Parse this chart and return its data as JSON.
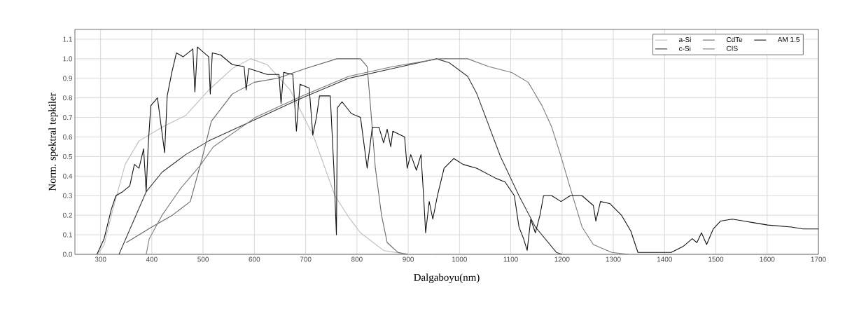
{
  "chart_data": {
    "type": "line",
    "xlabel": "Dalgaboyu(nm)",
    "ylabel": "Norm. spektral tepkiler",
    "xlim": [
      250,
      1700
    ],
    "ylim": [
      0,
      1.15
    ],
    "xticks": [
      300,
      400,
      500,
      600,
      700,
      800,
      900,
      1000,
      1100,
      1200,
      1300,
      1400,
      1500,
      1600,
      1700
    ],
    "yticks": [
      {
        "value": 0,
        "label": "0.0"
      },
      {
        "value": 0.1,
        "label": "0.1"
      },
      {
        "value": 0.2,
        "label": "0.2"
      },
      {
        "value": 0.3,
        "label": "0.3"
      },
      {
        "value": 0.4,
        "label": "0.4"
      },
      {
        "value": 0.5,
        "label": "0.5"
      },
      {
        "value": 0.6,
        "label": "0.6"
      },
      {
        "value": 0.7,
        "label": "0.7"
      },
      {
        "value": 0.8,
        "label": "0.8"
      },
      {
        "value": 0.9,
        "label": "0.9"
      },
      {
        "value": 1.0,
        "label": "1.0"
      },
      {
        "value": 1.1,
        "label": "1.1"
      }
    ],
    "grid": true,
    "legend": "top right",
    "series": [
      {
        "name": "a-Si",
        "color": "#bdbdbd",
        "x": [
          295,
          307,
          325,
          348,
          375,
          420,
          466,
          511,
          557,
          593,
          625,
          670,
          716,
          757,
          784,
          807,
          852,
          898,
          950
        ],
        "values": [
          0,
          0.05,
          0.24,
          0.46,
          0.58,
          0.65,
          0.71,
          0.84,
          0.95,
          1.0,
          0.97,
          0.84,
          0.6,
          0.3,
          0.19,
          0.11,
          0.02,
          0,
          0
        ]
      },
      {
        "name": "c-Si",
        "color": "#333333",
        "x": [
          336,
          389,
          420,
          466,
          511,
          602,
          693,
          784,
          870,
          955,
          980,
          1016,
          1034,
          1080,
          1116,
          1148,
          1189,
          1200
        ],
        "values": [
          0,
          0.32,
          0.42,
          0.51,
          0.58,
          0.69,
          0.8,
          0.9,
          0.95,
          1.0,
          0.98,
          0.91,
          0.82,
          0.5,
          0.3,
          0.14,
          0.01,
          0
        ]
      },
      {
        "name": "CdTe",
        "color": "#666666",
        "x": [
          350,
          400,
          440,
          475,
          498,
          516,
          557,
          600,
          645,
          700,
          761,
          807,
          820,
          827,
          836,
          848,
          859,
          880,
          900
        ],
        "values": [
          0.06,
          0.14,
          0.2,
          0.27,
          0.49,
          0.68,
          0.82,
          0.88,
          0.9,
          0.95,
          1.0,
          1.0,
          0.96,
          0.74,
          0.44,
          0.2,
          0.06,
          0.01,
          0
        ]
      },
      {
        "name": "CIS",
        "color": "#7a7a7a",
        "x": [
          389,
          395,
          420,
          457,
          493,
          520,
          602,
          693,
          784,
          870,
          960,
          1016,
          1057,
          1102,
          1134,
          1161,
          1180,
          1198,
          1216,
          1239,
          1261,
          1297,
          1330
        ],
        "values": [
          0,
          0.08,
          0.2,
          0.34,
          0.45,
          0.55,
          0.7,
          0.81,
          0.91,
          0.96,
          1.0,
          1.0,
          0.96,
          0.93,
          0.88,
          0.76,
          0.65,
          0.5,
          0.34,
          0.14,
          0.05,
          0.01,
          0
        ]
      },
      {
        "name": "AM 1.5",
        "color": "#111111",
        "x": [
          293,
          307,
          321,
          330,
          343,
          357,
          366,
          375,
          384,
          389,
          393,
          398,
          411,
          425,
          430,
          439,
          448,
          461,
          480,
          484,
          489,
          511,
          514,
          518,
          534,
          557,
          580,
          584,
          589,
          625,
          648,
          652,
          657,
          675,
          682,
          689,
          707,
          714,
          721,
          727,
          748,
          755,
          760,
          762,
          771,
          789,
          807,
          814,
          820,
          830,
          843,
          852,
          859,
          866,
          870,
          893,
          898,
          905,
          916,
          925,
          930,
          934,
          941,
          948,
          957,
          970,
          989,
          1007,
          1034,
          1070,
          1089,
          1107,
          1116,
          1125,
          1132,
          1139,
          1148,
          1157,
          1164,
          1180,
          1198,
          1216,
          1239,
          1261,
          1266,
          1275,
          1293,
          1316,
          1334,
          1348,
          1413,
          1436,
          1454,
          1463,
          1472,
          1482,
          1495,
          1509,
          1532,
          1555,
          1578,
          1601,
          1647,
          1670,
          1700
        ],
        "values": [
          0,
          0.08,
          0.23,
          0.3,
          0.32,
          0.35,
          0.46,
          0.44,
          0.54,
          0.32,
          0.56,
          0.76,
          0.8,
          0.52,
          0.81,
          0.93,
          1.03,
          1.01,
          1.05,
          0.83,
          1.06,
          1.01,
          0.82,
          1.03,
          1.02,
          0.97,
          0.96,
          0.84,
          0.95,
          0.92,
          0.92,
          0.77,
          0.93,
          0.92,
          0.63,
          0.87,
          0.85,
          0.61,
          0.7,
          0.81,
          0.81,
          0.44,
          0.1,
          0.75,
          0.78,
          0.72,
          0.7,
          0.56,
          0.44,
          0.65,
          0.65,
          0.57,
          0.64,
          0.55,
          0.63,
          0.6,
          0.44,
          0.51,
          0.43,
          0.51,
          0.3,
          0.11,
          0.27,
          0.18,
          0.3,
          0.44,
          0.49,
          0.46,
          0.44,
          0.39,
          0.37,
          0.3,
          0.14,
          0.08,
          0.02,
          0.18,
          0.11,
          0.2,
          0.3,
          0.3,
          0.27,
          0.3,
          0.3,
          0.25,
          0.17,
          0.27,
          0.26,
          0.2,
          0.12,
          0.01,
          0.01,
          0.04,
          0.08,
          0.06,
          0.11,
          0.05,
          0.13,
          0.17,
          0.18,
          0.17,
          0.16,
          0.15,
          0.14,
          0.13,
          0.13
        ]
      }
    ]
  }
}
